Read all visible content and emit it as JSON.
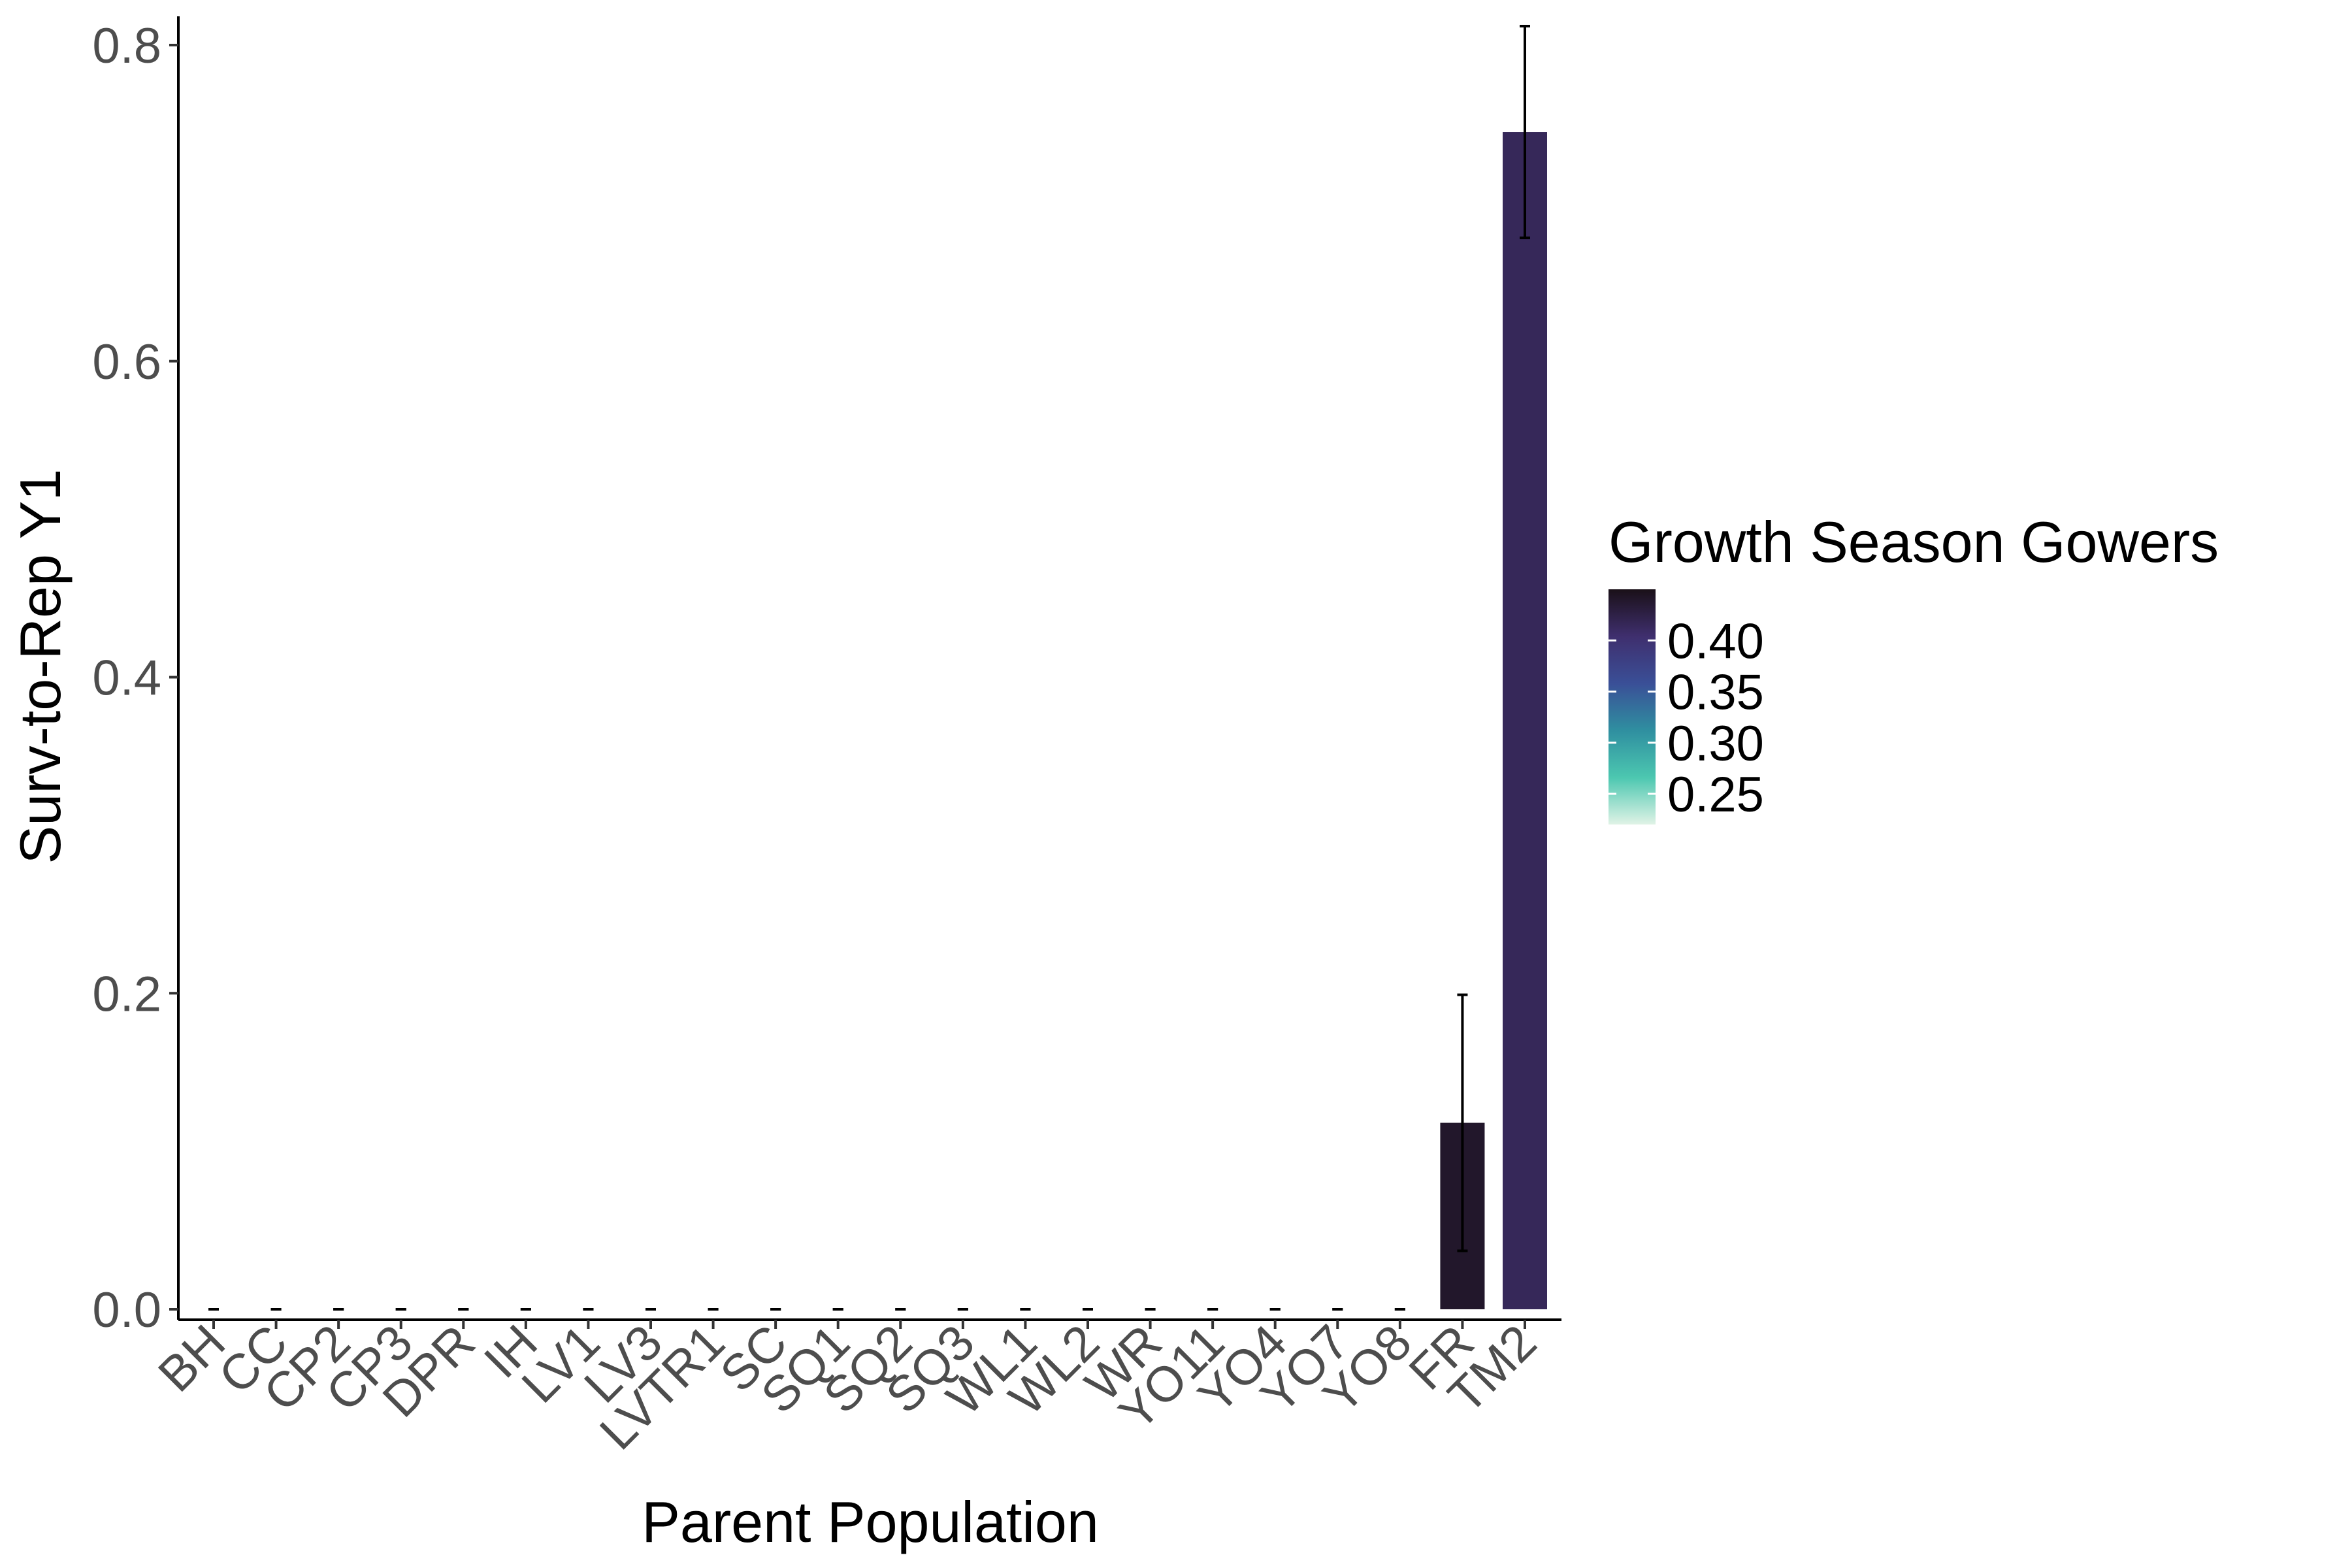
{
  "chart_data": {
    "type": "bar",
    "xlabel": "Parent Population",
    "ylabel": "Surv-to-Rep Y1",
    "categories": [
      "BH",
      "CC",
      "CP2",
      "CP3",
      "DPR",
      "IH",
      "LV1",
      "LV3",
      "LVTR1",
      "SC",
      "SQ1",
      "SQ2",
      "SQ3",
      "WL1",
      "WL2",
      "WR",
      "YO11",
      "YO4",
      "YO7",
      "YO8",
      "FR",
      "TM2"
    ],
    "values": [
      0,
      0,
      0,
      0,
      0,
      0,
      0,
      0,
      0,
      0,
      0,
      0,
      0,
      0,
      0,
      0,
      0,
      0,
      0,
      0,
      0.118,
      0.745
    ],
    "error_low": [
      0,
      0,
      0,
      0,
      0,
      0,
      0,
      0,
      0,
      0,
      0,
      0,
      0,
      0,
      0,
      0,
      0,
      0,
      0,
      0,
      0.037,
      0.678
    ],
    "error_high": [
      0,
      0,
      0,
      0,
      0,
      0,
      0,
      0,
      0,
      0,
      0,
      0,
      0,
      0,
      0,
      0,
      0,
      0,
      0,
      0,
      0.199,
      0.812
    ],
    "fill_values": [
      null,
      null,
      null,
      null,
      null,
      null,
      null,
      null,
      null,
      null,
      null,
      null,
      null,
      null,
      null,
      null,
      null,
      null,
      null,
      null,
      0.44,
      0.415
    ],
    "ylim": [
      0,
      0.82
    ],
    "yticks": [
      "0.0",
      "0.2",
      "0.4",
      "0.6",
      "0.8"
    ],
    "ytick_values": [
      0,
      0.2,
      0.4,
      0.6,
      0.8
    ],
    "grid": false,
    "legend": {
      "title": "Growth Season Gowers",
      "placement": "right",
      "labels": [
        "0.40",
        "0.35",
        "0.30",
        "0.25"
      ],
      "label_values": [
        0.4,
        0.35,
        0.3,
        0.25
      ],
      "range": [
        0.22,
        0.45
      ],
      "colors": [
        "#e0f3e6",
        "#4cc7b0",
        "#2f8fa0",
        "#3a4f97",
        "#3f2f6e",
        "#1a1018"
      ]
    }
  }
}
